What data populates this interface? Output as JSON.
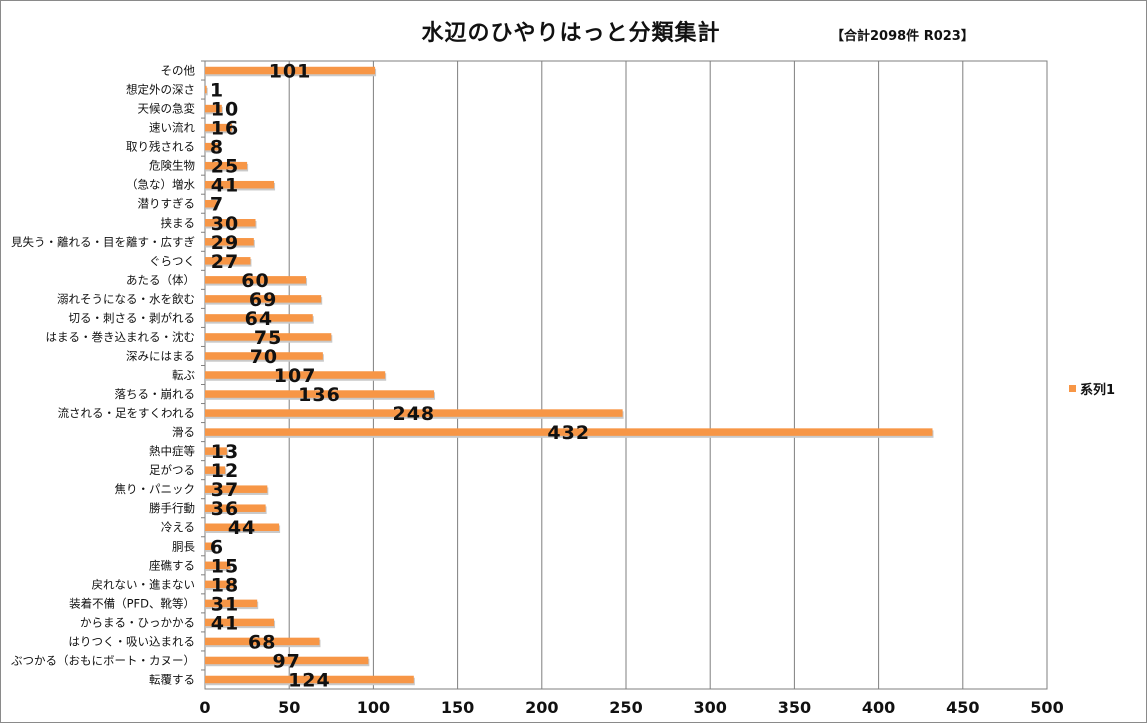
{
  "chart_data": {
    "type": "bar",
    "orientation": "horizontal",
    "title": "水辺のひやりはっと分類集計",
    "subtitle": "【合計2098件 R023】",
    "xlim": [
      0,
      500
    ],
    "xticks": [
      0,
      50,
      100,
      150,
      200,
      250,
      300,
      350,
      400,
      450,
      500
    ],
    "grid": true,
    "legend_position": "right",
    "bar_color": "#F79646",
    "categories": [
      "その他",
      "想定外の深さ",
      "天候の急変",
      "速い流れ",
      "取り残される",
      "危険生物",
      "（急な）増水",
      "潜りすぎる",
      "挟まる",
      "見失う・離れる・目を離す・広すぎ",
      "ぐらつく",
      "あたる（体）",
      "溺れそうになる・水を飲む",
      "切る・刺さる・剥がれる",
      "はまる・巻き込まれる・沈む",
      "深みにはまる",
      "転ぶ",
      "落ちる・崩れる",
      "流される・足をすくわれる",
      "滑る",
      "熱中症等",
      "足がつる",
      "焦り・パニック",
      "勝手行動",
      "冷える",
      "胴長",
      "座礁する",
      "戻れない・進まない",
      "装着不備（PFD、靴等）",
      "からまる・ひっかかる",
      "はりつく・吸い込まれる",
      "ぶつかる（おもにボート・カヌー）",
      "転覆する"
    ],
    "series": [
      {
        "name": "系列1",
        "values": [
          101,
          1,
          10,
          16,
          8,
          25,
          41,
          7,
          30,
          29,
          27,
          60,
          69,
          64,
          75,
          70,
          107,
          136,
          248,
          432,
          13,
          12,
          37,
          36,
          44,
          6,
          15,
          18,
          31,
          41,
          68,
          97,
          124
        ]
      }
    ]
  }
}
